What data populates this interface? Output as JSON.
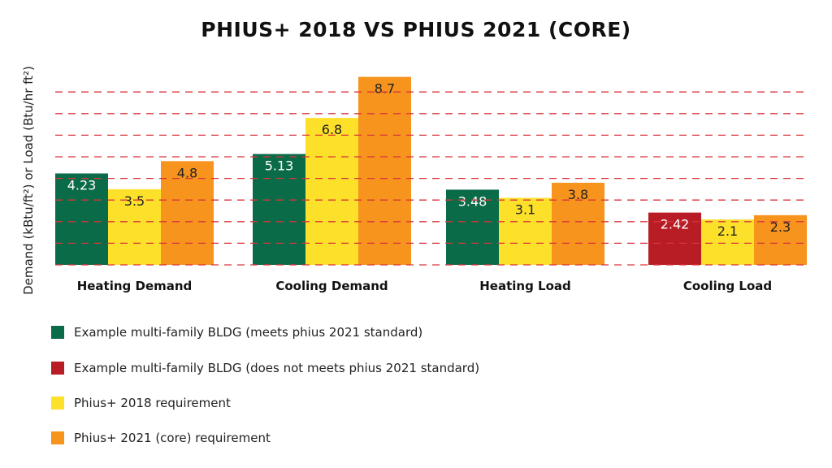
{
  "chart_data": {
    "type": "bar",
    "title": "PHIUS+ 2018 VS PHIUS 2021 (CORE)",
    "ylabel": "Demand (kBtu/ft²) or Load (Btu/hr ft²)",
    "xlabel": "",
    "categories": [
      "Heating Demand",
      "Cooling Demand",
      "Heating Load",
      "Cooling Load"
    ],
    "ylim": [
      0,
      9
    ],
    "grid": true,
    "legend_position": "bottom-left",
    "series": [
      {
        "name": "Example multi-family BLDG (meets phius 2021 standard) / (does not meets phius 2021 standard)",
        "values": [
          4.23,
          5.13,
          3.48,
          2.42
        ],
        "colors": [
          "#0a6b48",
          "#0a6b48",
          "#0a6b48",
          "#b81c24"
        ]
      },
      {
        "name": "Phius+ 2018 requirement",
        "values": [
          3.5,
          6.8,
          3.1,
          2.1
        ],
        "colors": [
          "#fde02a",
          "#fde02a",
          "#fde02a",
          "#fde02a"
        ]
      },
      {
        "name": "Phius+ 2021 (core) requirement",
        "values": [
          4.8,
          8.7,
          3.8,
          2.3
        ],
        "colors": [
          "#f7941e",
          "#f7941e",
          "#f7941e",
          "#f7941e"
        ]
      }
    ],
    "legend": [
      {
        "label": "Example multi-family BLDG (meets phius 2021 standard)",
        "color": "#0a6b48"
      },
      {
        "label": "Example multi-family BLDG (does not meets phius 2021 standard)",
        "color": "#b81c24"
      },
      {
        "label": "Phius+ 2018 requirement",
        "color": "#fde02a"
      },
      {
        "label": "Phius+ 2021 (core) requirement",
        "color": "#f7941e"
      }
    ],
    "gridline_color": "#d9343b"
  }
}
